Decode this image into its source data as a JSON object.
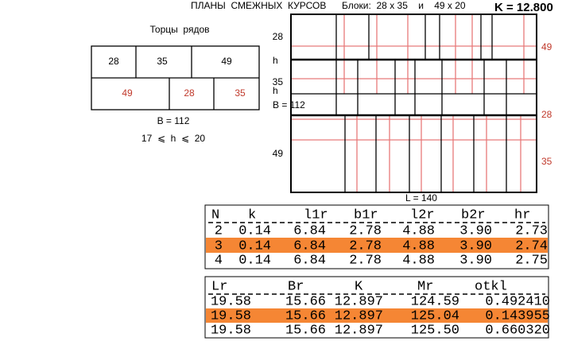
{
  "header": {
    "title": "ПЛАНЫ  СМЕЖНЫХ  КУРСОВ",
    "blocks": "Блоки:  28 x 35    и    49 x 20",
    "k": "K = 12.800"
  },
  "ends": {
    "title": "Торцы  рядов",
    "row1": [
      "28",
      "35",
      "49"
    ],
    "row2": [
      "49",
      "28",
      "35"
    ],
    "h1": "h",
    "h2": "h",
    "b_side": "B = 112",
    "b_bottom": "B = 112",
    "constraint": "17  ⩽  h  ⩽  20"
  },
  "plan": {
    "left_labels": [
      "28",
      "35",
      "49"
    ],
    "right_labels": [
      "49",
      "28",
      "35"
    ],
    "length": "L = 140"
  },
  "table1": {
    "columns": [
      "N",
      "k",
      "l1r",
      "b1r",
      "l2r",
      "b2r",
      "hr"
    ],
    "rows": [
      [
        "2",
        "0.14",
        "6.84",
        "2.78",
        "4.88",
        "3.90",
        "2.73"
      ],
      [
        "3",
        "0.14",
        "6.84",
        "2.78",
        "4.88",
        "3.90",
        "2.74"
      ],
      [
        "4",
        "0.14",
        "6.84",
        "2.78",
        "4.88",
        "3.90",
        "2.75"
      ]
    ]
  },
  "table2": {
    "columns": [
      "Lr",
      "Br",
      "K",
      "Mr",
      "otkl"
    ],
    "rows": [
      [
        "19.58",
        "15.66",
        "12.897",
        "124.59",
        "0.492410"
      ],
      [
        "19.58",
        "15.66",
        "12.897",
        "125.04",
        "0.143955"
      ],
      [
        "19.58",
        "15.66",
        "12.897",
        "125.50",
        "0.660320"
      ]
    ]
  }
}
